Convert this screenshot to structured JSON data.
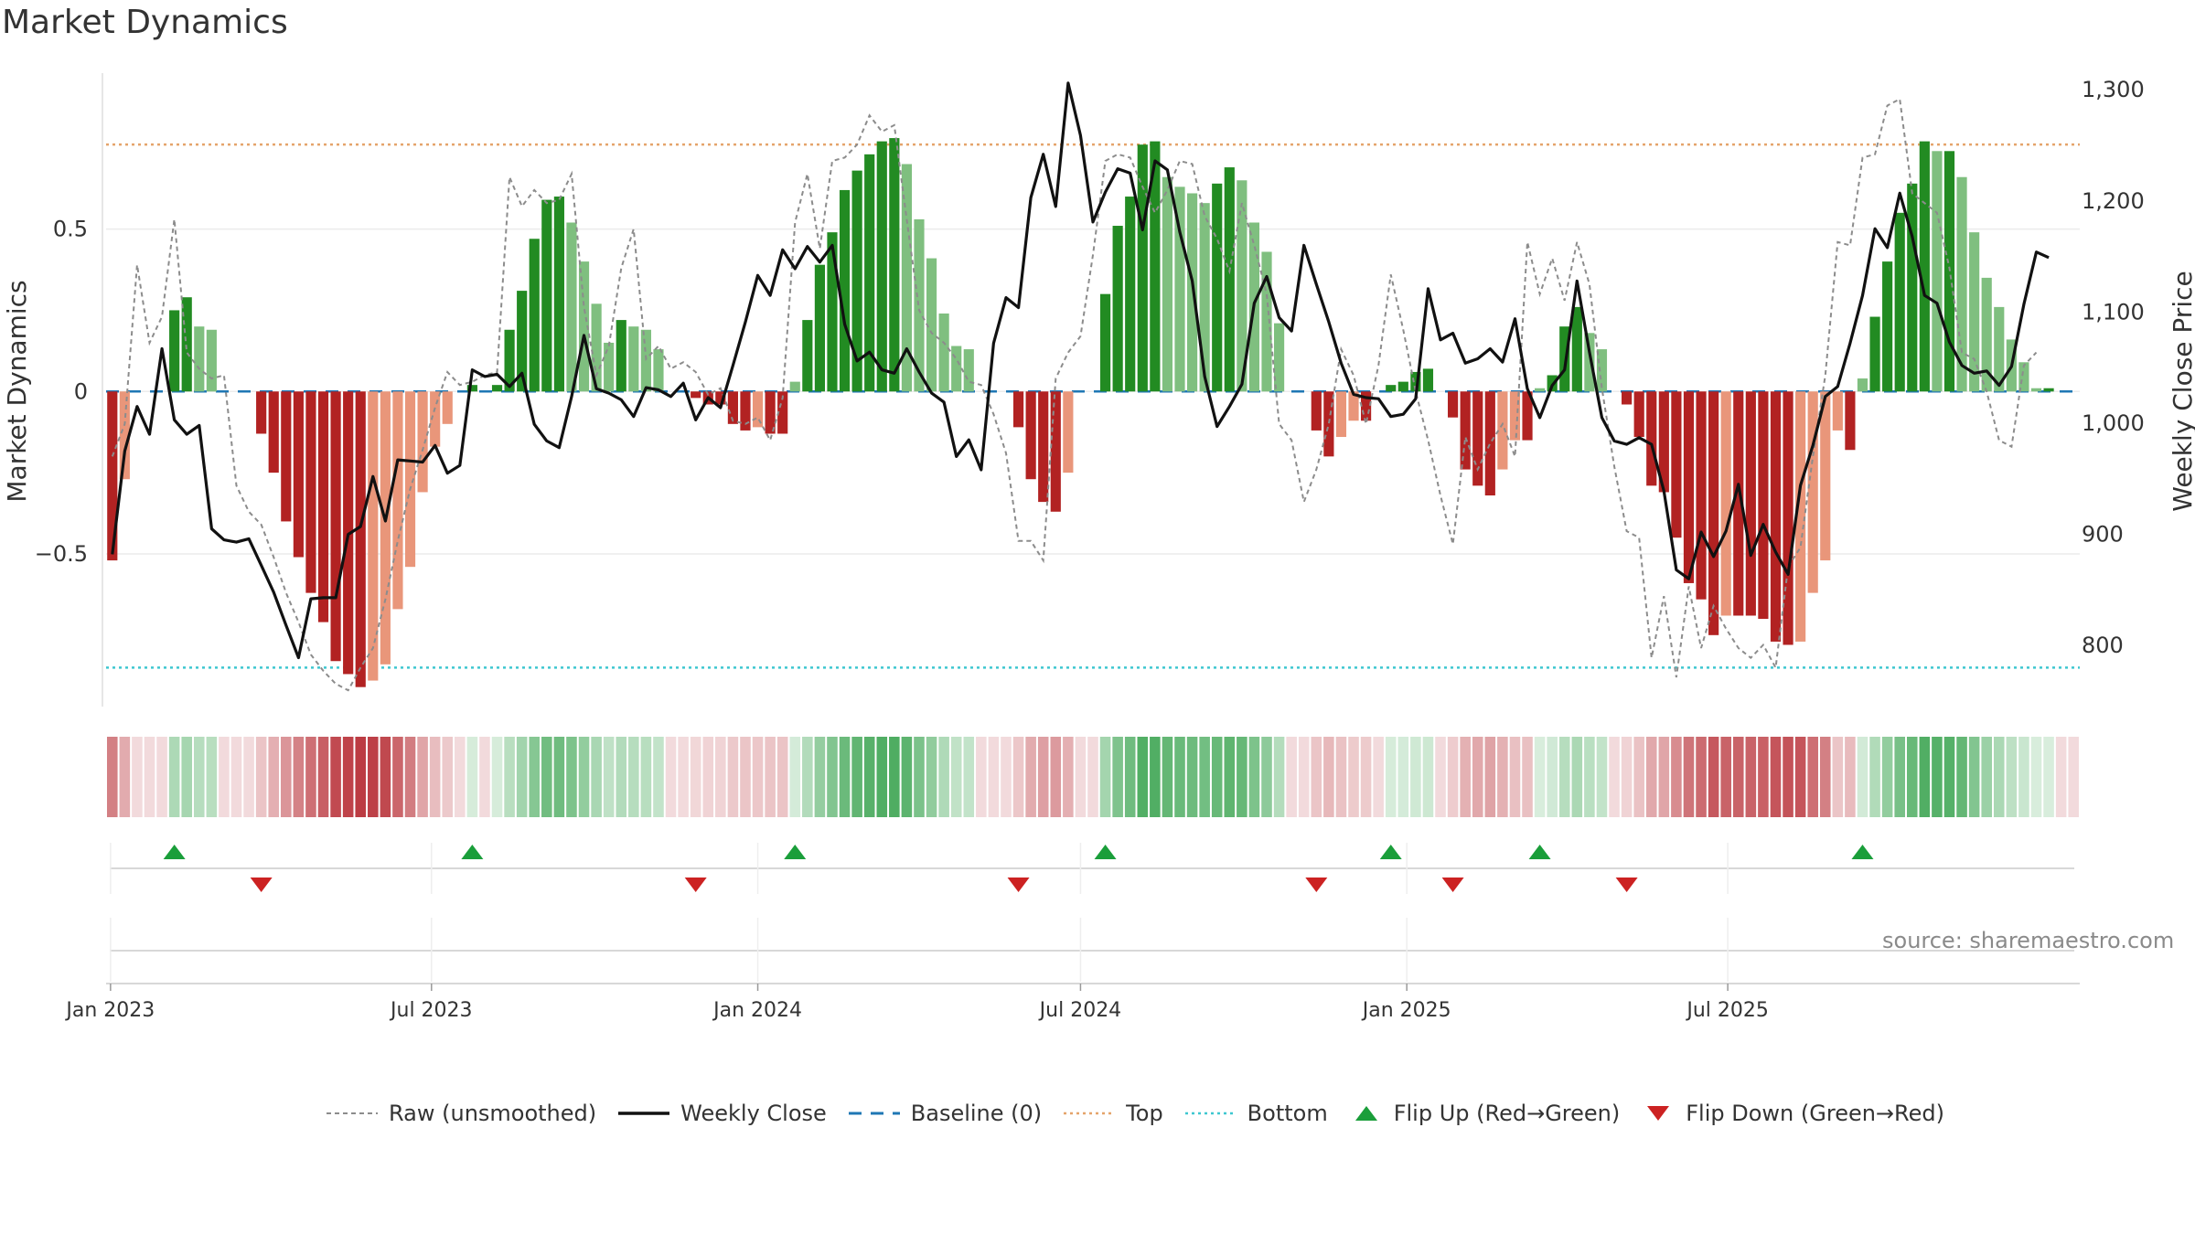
{
  "title": "Market Dynamics",
  "source": "source: sharemaestro.com",
  "colors": {
    "green_strong": "#228b22",
    "green_light": "#7fbf7f",
    "red_strong": "#b22222",
    "red_light": "#e9967a",
    "raw_line": "#8c8c8c",
    "close_line": "#111111",
    "baseline": "#1f77b4",
    "top_line": "#e5a46b",
    "bottom_line": "#3ec7d0",
    "flip_up": "#1a9e3a",
    "flip_down": "#cc2222"
  },
  "legend": [
    {
      "key": "raw",
      "label": "Raw (unsmoothed)",
      "icon": "dotted-gray-line"
    },
    {
      "key": "close",
      "label": "Weekly Close",
      "icon": "solid-black-line"
    },
    {
      "key": "baseline",
      "label": "Baseline (0)",
      "icon": "dashed-blue-line"
    },
    {
      "key": "top",
      "label": "Top",
      "icon": "dotted-orange-line"
    },
    {
      "key": "bottom",
      "label": "Bottom",
      "icon": "dotted-cyan-line"
    },
    {
      "key": "flip_up",
      "label": "Flip Up (Red→Green)",
      "icon": "triangle-up-icon"
    },
    {
      "key": "flip_down",
      "label": "Flip Down (Green→Red)",
      "icon": "triangle-down-icon"
    }
  ],
  "chart_data": {
    "type": "bar",
    "title": "Market Dynamics",
    "ylabel": "Market Dynamics",
    "ylabel_right": "Weekly Close Price",
    "ylim": [
      -0.97,
      0.98
    ],
    "ylim_right": [
      745,
      1315
    ],
    "yticks": [
      -0.5,
      0,
      0.5
    ],
    "ytick_labels": [
      "−0.5",
      "0",
      "0.5"
    ],
    "yticks_right": [
      800,
      900,
      1000,
      1100,
      1200,
      1300
    ],
    "ytick_labels_right": [
      "800",
      "900",
      "1,000",
      "1,100",
      "1,200",
      "1,300"
    ],
    "xticks": [
      "Jan 2023",
      "Jul 2023",
      "Jan 2024",
      "Jul 2024",
      "Jan 2025",
      "Jul 2025"
    ],
    "x_start": "2023-01-02",
    "x_step_days": 7,
    "top_level": 0.76,
    "bottom_level": -0.85,
    "grid": true,
    "legend_position": "bottom",
    "market_dynamics": [
      -0.52,
      -0.27,
      0,
      0,
      0,
      0.25,
      0.29,
      0.2,
      0.19,
      0,
      0,
      0,
      -0.13,
      -0.25,
      -0.4,
      -0.51,
      -0.62,
      -0.71,
      -0.83,
      -0.87,
      -0.91,
      -0.89,
      -0.84,
      -0.67,
      -0.54,
      -0.31,
      -0.17,
      -0.1,
      0,
      0.02,
      0,
      0.02,
      0.19,
      0.31,
      0.47,
      0.59,
      0.6,
      0.52,
      0.4,
      0.27,
      0.15,
      0.22,
      0.2,
      0.19,
      0.13,
      0,
      0,
      -0.02,
      -0.04,
      -0.04,
      -0.1,
      -0.12,
      -0.11,
      -0.13,
      -0.13,
      0.03,
      0.22,
      0.39,
      0.49,
      0.62,
      0.68,
      0.73,
      0.77,
      0.78,
      0.7,
      0.53,
      0.41,
      0.24,
      0.14,
      0.13,
      0,
      0,
      0,
      -0.11,
      -0.27,
      -0.34,
      -0.37,
      -0.25,
      0,
      0,
      0.3,
      0.51,
      0.6,
      0.76,
      0.77,
      0.66,
      0.63,
      0.61,
      0.58,
      0.64,
      0.69,
      0.65,
      0.52,
      0.43,
      0.21,
      0,
      0,
      -0.12,
      -0.2,
      -0.14,
      -0.09,
      -0.09,
      0,
      0.02,
      0.03,
      0.06,
      0.07,
      0,
      -0.08,
      -0.24,
      -0.29,
      -0.32,
      -0.24,
      -0.15,
      -0.15,
      0.01,
      0.05,
      0.2,
      0.26,
      0.18,
      0.13,
      0,
      -0.04,
      -0.14,
      -0.29,
      -0.31,
      -0.45,
      -0.59,
      -0.64,
      -0.75,
      -0.69,
      -0.69,
      -0.69,
      -0.7,
      -0.77,
      -0.78,
      -0.77,
      -0.62,
      -0.52,
      -0.12,
      -0.18,
      0.04,
      0.23,
      0.4,
      0.55,
      0.64,
      0.77,
      0.74,
      0.74,
      0.66,
      0.49,
      0.35,
      0.26,
      0.16,
      0.09,
      0.01,
      0.01,
      0,
      0
    ],
    "raw_unsmoothed": [
      -0.2,
      -0.1,
      0.39,
      0.15,
      0.23,
      0.53,
      0.12,
      0.07,
      0.04,
      0.05,
      -0.29,
      -0.37,
      -0.41,
      -0.51,
      -0.62,
      -0.71,
      -0.81,
      -0.86,
      -0.9,
      -0.92,
      -0.85,
      -0.79,
      -0.64,
      -0.46,
      -0.3,
      -0.18,
      -0.05,
      0.06,
      0.02,
      0.03,
      0.05,
      0.06,
      0.66,
      0.57,
      0.62,
      0.58,
      0.59,
      0.67,
      0.26,
      0.05,
      0.14,
      0.38,
      0.5,
      0.1,
      0.14,
      0.07,
      0.09,
      0.06,
      -0.01,
      0.01,
      -0.09,
      -0.1,
      -0.08,
      -0.15,
      -0.02,
      0.52,
      0.67,
      0.44,
      0.71,
      0.72,
      0.76,
      0.85,
      0.8,
      0.82,
      0.53,
      0.25,
      0.18,
      0.15,
      0.1,
      0.03,
      0.02,
      -0.07,
      -0.19,
      -0.46,
      -0.46,
      -0.52,
      0.04,
      0.12,
      0.17,
      0.42,
      0.71,
      0.73,
      0.72,
      0.63,
      0.55,
      0.62,
      0.71,
      0.7,
      0.54,
      0.47,
      0.37,
      0.58,
      0.45,
      0.3,
      -0.1,
      -0.15,
      -0.34,
      -0.24,
      -0.1,
      0.13,
      0.05,
      -0.1,
      0.08,
      0.36,
      0.19,
      0.0,
      -0.15,
      -0.32,
      -0.47,
      -0.14,
      -0.24,
      -0.16,
      -0.1,
      -0.2,
      0.46,
      0.3,
      0.41,
      0.28,
      0.46,
      0.33,
      0.01,
      -0.23,
      -0.43,
      -0.45,
      -0.82,
      -0.63,
      -0.88,
      -0.6,
      -0.79,
      -0.66,
      -0.73,
      -0.79,
      -0.82,
      -0.78,
      -0.85,
      -0.54,
      -0.48,
      -0.2,
      0.05,
      0.46,
      0.45,
      0.72,
      0.73,
      0.88,
      0.9,
      0.61,
      0.58,
      0.55,
      0.38,
      0.12,
      0.1,
      0.0,
      -0.15,
      -0.17,
      0.08,
      0.12
    ],
    "weekly_close": [
      882,
      975,
      1015,
      990,
      1067,
      1003,
      990,
      998,
      905,
      895,
      893,
      896,
      872,
      848,
      818,
      789,
      842,
      843,
      843,
      900,
      907,
      952,
      912,
      967,
      966,
      965,
      980,
      955,
      962,
      1048,
      1042,
      1044,
      1033,
      1045,
      999,
      984,
      978,
      1024,
      1079,
      1031,
      1027,
      1021,
      1006,
      1032,
      1030,
      1024,
      1036,
      1003,
      1023,
      1014,
      1052,
      1091,
      1133,
      1115,
      1156,
      1139,
      1159,
      1145,
      1160,
      1089,
      1056,
      1064,
      1048,
      1045,
      1067,
      1046,
      1027,
      1019,
      970,
      985,
      958,
      1072,
      1113,
      1104,
      1203,
      1242,
      1195,
      1306,
      1259,
      1181,
      1208,
      1229,
      1225,
      1174,
      1236,
      1228,
      1172,
      1128,
      1042,
      997,
      1015,
      1035,
      1108,
      1132,
      1095,
      1083,
      1160,
      1125,
      1091,
      1054,
      1026,
      1023,
      1022,
      1006,
      1008,
      1022,
      1121,
      1075,
      1081,
      1054,
      1058,
      1067,
      1055,
      1094,
      1031,
      1005,
      1034,
      1048,
      1128,
      1064,
      1005,
      984,
      981,
      987,
      981,
      939,
      868,
      860,
      902,
      880,
      903,
      945,
      881,
      909,
      884,
      864,
      944,
      980,
      1024,
      1033,
      1072,
      1115,
      1175,
      1158,
      1207,
      1168,
      1115,
      1108,
      1073,
      1052,
      1045,
      1047,
      1034,
      1051,
      1107,
      1154,
      1149
    ]
  }
}
